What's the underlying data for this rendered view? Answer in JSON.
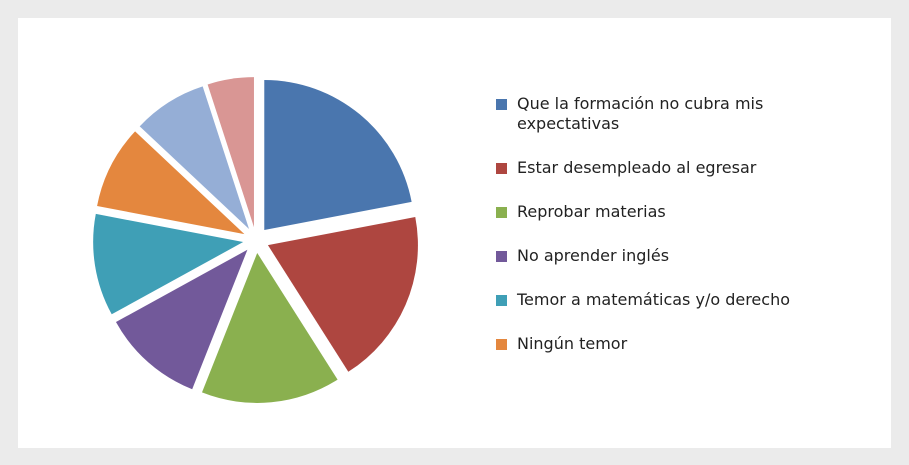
{
  "chart_data": {
    "type": "pie",
    "categories": [
      "Que la formación no cubra mis expectativas",
      "Estar desempleado al egresar",
      "Reprobar materias",
      "No aprender inglés",
      "Temor a matemáticas y/o derecho",
      "Ningún temor",
      null,
      null
    ],
    "values": [
      22,
      19,
      15,
      11,
      11,
      9,
      8,
      5
    ],
    "colors": [
      "#4a76ae",
      "#ae4640",
      "#8ab04f",
      "#72599a",
      "#3f9fb6",
      "#e4873e",
      "#95aed6",
      "#d99694"
    ],
    "legend": "right"
  }
}
